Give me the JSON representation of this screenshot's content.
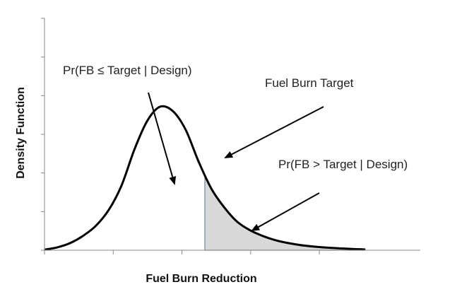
{
  "chart_data": {
    "type": "line",
    "xlabel": "Fuel Burn Reduction",
    "ylabel": "Density Function",
    "x_ticks_count": 4,
    "y_ticks_count": 6,
    "tick_labels_shown": false,
    "grid": false,
    "curve": {
      "description_shape": "right-skewed density",
      "x": [
        0.0,
        0.4,
        0.8,
        1.2,
        1.6,
        2.0,
        2.4,
        2.8,
        3.2,
        3.6,
        4.0,
        4.4,
        4.8,
        5.2,
        5.6,
        6.0,
        6.4,
        6.8,
        7.2,
        7.6,
        8.0,
        8.4,
        8.8,
        9.2,
        9.6,
        10.0
      ],
      "y": [
        0.004,
        0.02,
        0.05,
        0.1,
        0.17,
        0.28,
        0.45,
        0.7,
        0.9,
        1.0,
        0.97,
        0.84,
        0.62,
        0.43,
        0.3,
        0.2,
        0.14,
        0.1,
        0.07,
        0.05,
        0.035,
        0.025,
        0.018,
        0.013,
        0.009,
        0.005
      ]
    },
    "target_x": 5.0,
    "shaded_region": "x > target",
    "colors": {
      "curve": "#000000",
      "shade_fill": "#d9d9d9",
      "shade_edge": "#6f89a6"
    },
    "annotations": [
      {
        "text": "Pr(FB ≤ Target  |  Design)"
      },
      {
        "text": "Fuel Burn Target"
      },
      {
        "text": "Pr(FB > Target |  Design)"
      }
    ]
  }
}
